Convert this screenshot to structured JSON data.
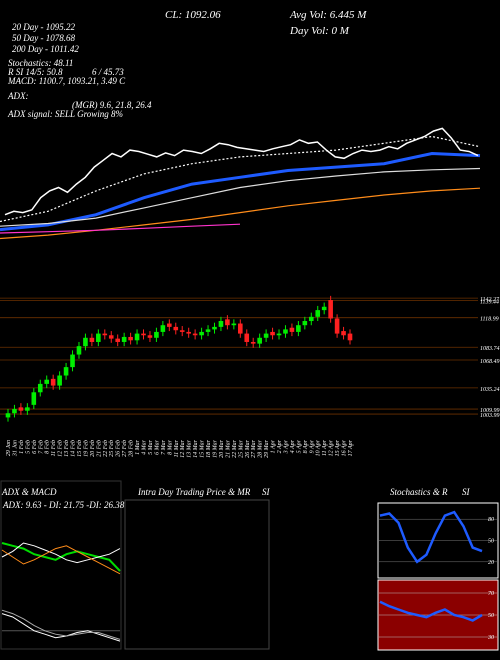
{
  "chart_data": [
    {
      "type": "line",
      "close_label": "CL: 1092.06",
      "avg_vol": "Avg Vol: 6.445 M",
      "day_vol": "Day Vol: 0  M",
      "ema_texts": [
        "20 Day - 1095.22",
        "50 Day - 1078.68",
        "200 Day - 1011.42"
      ],
      "indicator_texts": [
        "Stochastics: 48.11",
        "R SI 14/5: 50.8",
        "6 / 45.73",
        "MACD: 1100.7, 1093.21, 3.49 C",
        "ADX:",
        "(MGR) 9.6, 21.8, 26.4",
        "ADX  signal: SELL Growing 8%"
      ],
      "ylim": [
        953,
        1321
      ],
      "lines": [
        {
          "color": "#ffffff",
          "style": "dotted",
          "values": [
            995,
            1010,
            1040,
            1065,
            1080,
            1090,
            1095,
            1100,
            1110,
            1120,
            1105
          ]
        },
        {
          "color": "#1e5bff",
          "style": "thick",
          "values": [
            983,
            990,
            1005,
            1030,
            1050,
            1060,
            1070,
            1075,
            1080,
            1095,
            1092
          ]
        },
        {
          "color": "#dddddd",
          "style": "thin",
          "values": [
            988,
            992,
            1000,
            1015,
            1030,
            1045,
            1055,
            1062,
            1068,
            1071,
            1073
          ]
        },
        {
          "color": "#ff8c1a",
          "style": "thin",
          "values": [
            970,
            975,
            982,
            990,
            998,
            1008,
            1018,
            1026,
            1034,
            1040,
            1044
          ]
        },
        {
          "color": "#ff33cc",
          "style": "thin",
          "values": [
            978,
            980,
            982,
            985,
            988,
            991,
            null,
            null,
            null,
            null,
            null
          ]
        }
      ]
    },
    {
      "type": "candlestick",
      "up_color": "#00ee00",
      "down_color": "#ff2020",
      "categories": [
        "29 Jan",
        "31 Jan",
        "1 Feb",
        "5 Feb",
        "6 Feb",
        "7 Feb",
        "8 Feb",
        "11 Feb",
        "12 Feb",
        "13 Feb",
        "14 Feb",
        "15 Feb",
        "19 Feb",
        "20 Feb",
        "21 Feb",
        "22 Feb",
        "25 Feb",
        "26 Feb",
        "27 Feb",
        "28 Feb",
        "1 Mar",
        "4 Mar",
        "5 Mar",
        "6 Mar",
        "7 Mar",
        "8 Mar",
        "11 Mar",
        "12 Mar",
        "13 Mar",
        "14 Mar",
        "15 Mar",
        "18 Mar",
        "19 Mar",
        "20 Mar",
        "21 Mar",
        "22 Mar",
        "25 Mar",
        "26 Mar",
        "27 Mar",
        "28 Mar",
        "29 Mar",
        "1 Apr",
        "2 Apr",
        "3 Apr",
        "4 Apr",
        "5 Apr",
        "8 Apr",
        "9 Apr",
        "10 Apr",
        "11 Apr",
        "12 Apr",
        "15 Apr",
        "16 Apr",
        "17 Apr"
      ],
      "open": [
        1000,
        1005,
        1012,
        1008,
        1015,
        1030,
        1040,
        1046,
        1038,
        1050,
        1060,
        1075,
        1085,
        1095,
        1090,
        1100,
        1098,
        1094,
        1090,
        1096,
        1092,
        1100,
        1098,
        1095,
        1102,
        1112,
        1108,
        1104,
        1102,
        1100,
        1098,
        1102,
        1105,
        1108,
        1117,
        1110,
        1112,
        1100,
        1090,
        1088,
        1095,
        1102,
        1098,
        1100,
        1107,
        1102,
        1110,
        1115,
        1120,
        1128,
        1140,
        1118,
        1103,
        1100
      ],
      "high": [
        1010,
        1015,
        1017,
        1017,
        1035,
        1045,
        1050,
        1051,
        1055,
        1065,
        1080,
        1090,
        1100,
        1100,
        1105,
        1105,
        1103,
        1099,
        1101,
        1101,
        1105,
        1105,
        1103,
        1107,
        1115,
        1117,
        1113,
        1109,
        1107,
        1105,
        1107,
        1110,
        1113,
        1120,
        1122,
        1117,
        1117,
        1105,
        1095,
        1100,
        1105,
        1107,
        1105,
        1110,
        1112,
        1115,
        1120,
        1125,
        1133,
        1137,
        1145,
        1123,
        1108,
        1105
      ],
      "low": [
        995,
        1000,
        1003,
        1003,
        1010,
        1025,
        1035,
        1033,
        1033,
        1045,
        1055,
        1070,
        1080,
        1085,
        1085,
        1093,
        1089,
        1085,
        1085,
        1087,
        1087,
        1093,
        1090,
        1090,
        1097,
        1103,
        1099,
        1097,
        1095,
        1093,
        1093,
        1097,
        1100,
        1103,
        1105,
        1105,
        1095,
        1085,
        1083,
        1083,
        1090,
        1093,
        1093,
        1095,
        1097,
        1097,
        1105,
        1110,
        1115,
        1123,
        1113,
        1095,
        1093,
        1087
      ],
      "close": [
        1005,
        1010,
        1008,
        1012,
        1030,
        1040,
        1045,
        1038,
        1050,
        1060,
        1075,
        1085,
        1095,
        1090,
        1100,
        1098,
        1094,
        1090,
        1096,
        1092,
        1100,
        1098,
        1095,
        1102,
        1110,
        1108,
        1104,
        1102,
        1100,
        1098,
        1102,
        1105,
        1108,
        1115,
        1110,
        1112,
        1100,
        1090,
        1088,
        1095,
        1100,
        1098,
        1100,
        1105,
        1102,
        1110,
        1115,
        1120,
        1128,
        1132,
        1118,
        1100,
        1098,
        1092
      ],
      "ylim": [
        985,
        1152
      ],
      "yticks": [
        1142.27,
        1139.44,
        1118.99,
        1083.74,
        1068.49,
        1035.24,
        1009.99,
        1003.99
      ]
    },
    {
      "type": "line",
      "title": "ADX  & MACD",
      "subtitle": "ADX: 9.63 - DI: 21.75 -DI: 26.38",
      "ylim": [
        0,
        50
      ],
      "series": [
        {
          "color": "#00dd00",
          "values": [
            30,
            28,
            26,
            22,
            20,
            18,
            22,
            24,
            22,
            20,
            18,
            10
          ]
        },
        {
          "color": "#ffffff",
          "values": [
            20,
            24,
            30,
            28,
            25,
            22,
            18,
            16,
            18,
            20,
            22,
            26
          ]
        },
        {
          "color": "#ff8c1a",
          "values": [
            25,
            20,
            15,
            18,
            22,
            26,
            28,
            24,
            20,
            16,
            12,
            8
          ]
        }
      ],
      "macd_ylim": [
        -10,
        15
      ],
      "macd_series": [
        {
          "color": "#ffffff",
          "values": [
            10,
            8,
            4,
            0,
            -2,
            -4,
            -3,
            -1,
            0,
            -2,
            -4,
            -6
          ]
        },
        {
          "color": "#aaaaaa",
          "values": [
            12,
            10,
            7,
            3,
            0,
            -2,
            -3,
            -2,
            -1,
            -1,
            -3,
            -5
          ]
        }
      ]
    },
    {
      "type": "line",
      "title": "Intra Day Trading Price  & MR",
      "title2": "SI"
    },
    {
      "type": "line",
      "title": "Stochastics & R",
      "title2": "SI",
      "stoch_ylim": [
        0,
        100
      ],
      "stoch_yticks": [
        80,
        50,
        20
      ],
      "stoch_color": "#1e5bff",
      "stoch_values": [
        85,
        88,
        75,
        40,
        20,
        30,
        60,
        85,
        90,
        70,
        40,
        35
      ],
      "rsi_ylim": [
        20,
        80
      ],
      "rsi_yticks": [
        70,
        50,
        30
      ],
      "rsi_color": "#1e5bff",
      "rsi_values": [
        62,
        58,
        55,
        52,
        50,
        48,
        52,
        55,
        50,
        48,
        45,
        50
      ]
    }
  ]
}
